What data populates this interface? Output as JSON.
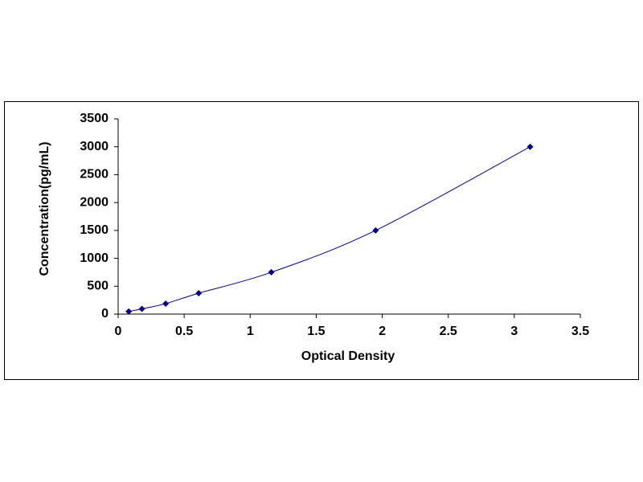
{
  "chart_data": {
    "type": "line",
    "x_label": "Optical Density",
    "y_label": "Concentration(pg/mL)",
    "x": [
      0.08,
      0.18,
      0.36,
      0.61,
      1.16,
      1.95,
      3.12
    ],
    "series": [
      {
        "color": "#00008b",
        "values": [
          47,
          94,
          188,
          375,
          750,
          1500,
          3000
        ]
      }
    ],
    "marker": "diamond",
    "smooth": true,
    "xlim": [
      0,
      3.5
    ],
    "xticks": [
      0,
      0.5,
      1,
      1.5,
      2,
      2.5,
      3,
      3.5
    ],
    "ylim": [
      0,
      3500
    ],
    "yticks": [
      0,
      500,
      1000,
      1500,
      2000,
      2500,
      3000,
      3500
    ],
    "grid": false
  }
}
